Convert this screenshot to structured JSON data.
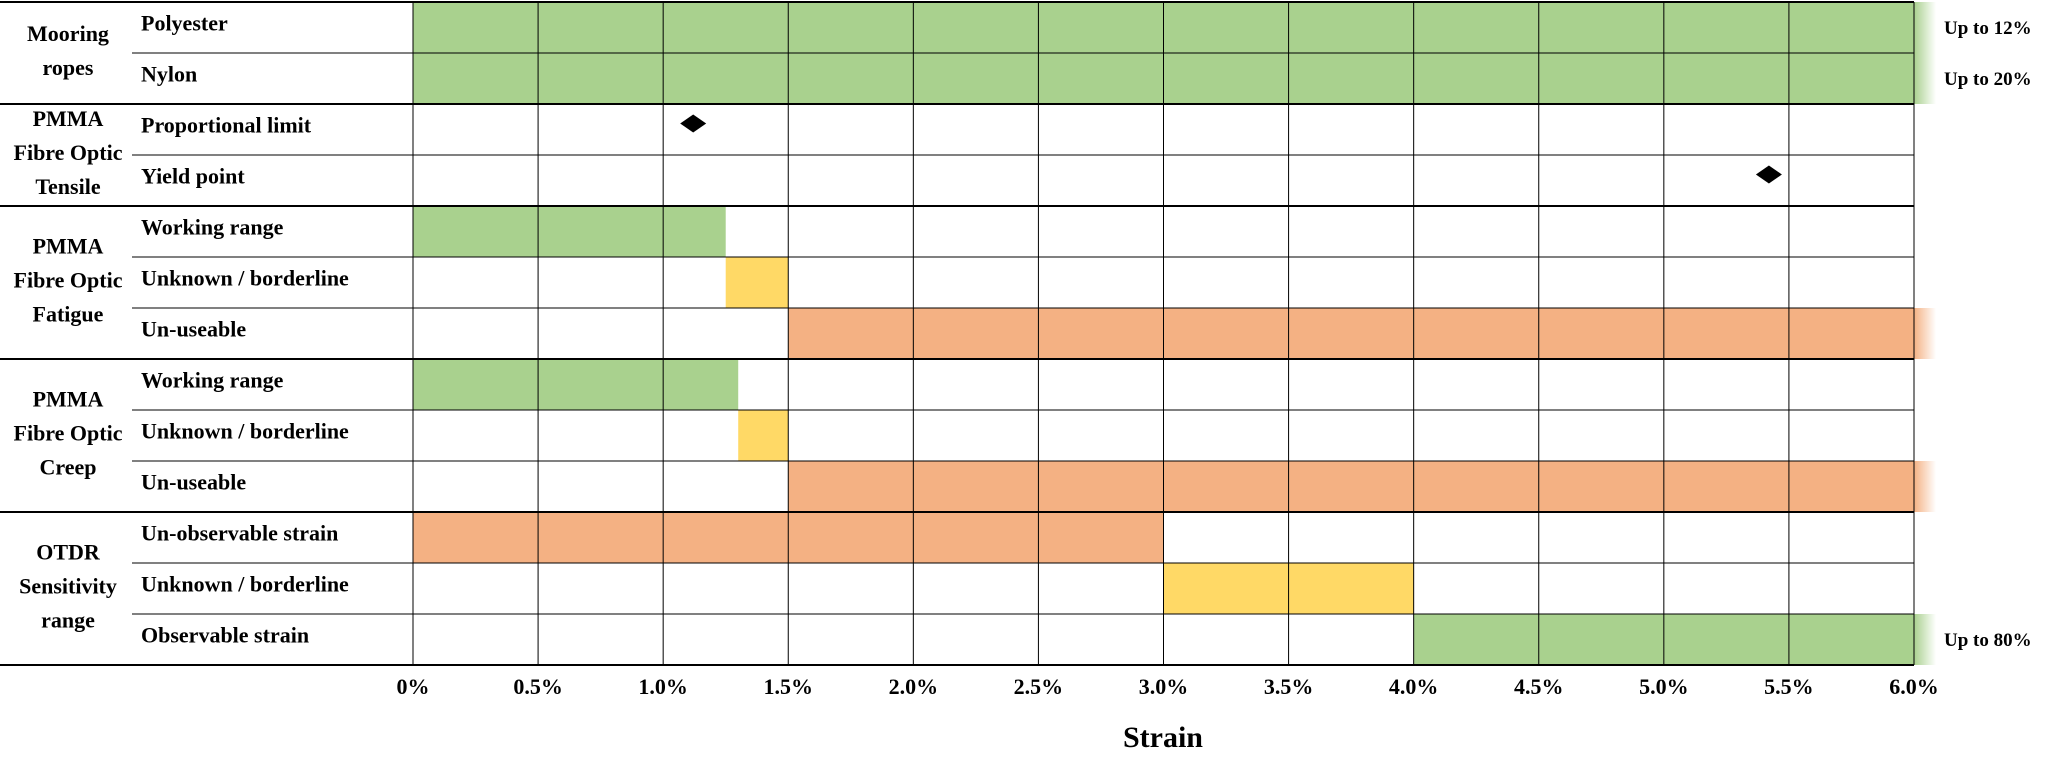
{
  "chart_data": {
    "type": "range",
    "xlabel": "Strain",
    "xlim": [
      0,
      6
    ],
    "xticks": [
      {
        "value": 0,
        "label": "0%"
      },
      {
        "value": 0.5,
        "label": "0.5%"
      },
      {
        "value": 1,
        "label": "1.0%"
      },
      {
        "value": 1.5,
        "label": "1.5%"
      },
      {
        "value": 2,
        "label": "2.0%"
      },
      {
        "value": 2.5,
        "label": "2.5%"
      },
      {
        "value": 3,
        "label": "3.0%"
      },
      {
        "value": 3.5,
        "label": "3.5%"
      },
      {
        "value": 4,
        "label": "4.0%"
      },
      {
        "value": 4.5,
        "label": "4.5%"
      },
      {
        "value": 5,
        "label": "5.0%"
      },
      {
        "value": 5.5,
        "label": "5.5%"
      },
      {
        "value": 6,
        "label": "6.0%"
      }
    ],
    "grid": true,
    "groups": [
      {
        "name": [
          "Mooring",
          "ropes"
        ],
        "rows": [
          {
            "label": "Polyester",
            "range": [
              0,
              12
            ],
            "value_label": "Up to 12%",
            "color": "#a9d18e"
          },
          {
            "label": "Nylon",
            "range": [
              0,
              20
            ],
            "value_label": "Up to 20%",
            "color": "#a9d18e"
          }
        ]
      },
      {
        "name": [
          "PMMA",
          "Fibre Optic",
          "Tensile"
        ],
        "rows": [
          {
            "label": "Proportional limit",
            "point": 1.12,
            "color": "#000000"
          },
          {
            "label": "Yield point",
            "point": 5.42,
            "color": "#000000"
          }
        ]
      },
      {
        "name": [
          "PMMA",
          "Fibre Optic",
          "Fatigue"
        ],
        "rows": [
          {
            "label": "Working range",
            "range": [
              0,
              1.25
            ],
            "color": "#a9d18e"
          },
          {
            "label": "Unknown / borderline",
            "range": [
              1.25,
              1.5
            ],
            "color": "#ffd966"
          },
          {
            "label": "Un-useable",
            "range": [
              1.5,
              null
            ],
            "color": "#f4b183"
          }
        ]
      },
      {
        "name": [
          "PMMA",
          "Fibre Optic",
          "Creep"
        ],
        "rows": [
          {
            "label": "Working range",
            "range": [
              0,
              1.3
            ],
            "color": "#a9d18e"
          },
          {
            "label": "Unknown / borderline",
            "range": [
              1.3,
              1.5
            ],
            "color": "#ffd966"
          },
          {
            "label": "Un-useable",
            "range": [
              1.5,
              null
            ],
            "color": "#f4b183"
          }
        ]
      },
      {
        "name": [
          "OTDR",
          "Sensitivity",
          "range"
        ],
        "rows": [
          {
            "label": "Un-observable strain",
            "range": [
              0,
              3
            ],
            "color": "#f4b183"
          },
          {
            "label": "Unknown / borderline",
            "range": [
              3,
              4
            ],
            "color": "#ffd966"
          },
          {
            "label": "Observable strain",
            "range": [
              4,
              80
            ],
            "value_label": "Up to 80%",
            "color": "#a9d18e"
          }
        ]
      }
    ]
  }
}
